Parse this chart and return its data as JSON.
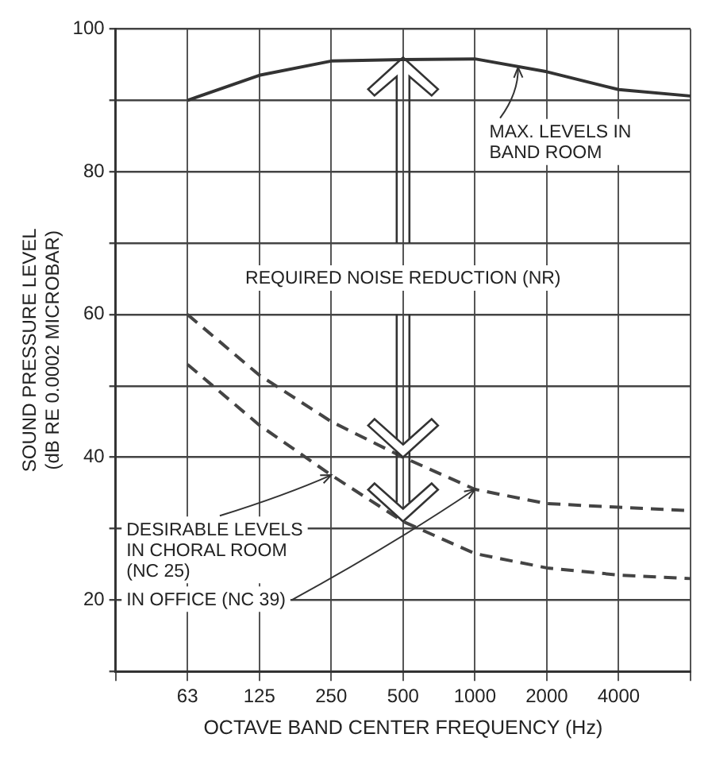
{
  "chart_data": {
    "type": "line",
    "xlabel": "OCTAVE BAND CENTER FREQUENCY (Hz)",
    "ylabel": "SOUND PRESSURE LEVEL (dB RE 0.0002 MICROBAR)",
    "categories": [
      null,
      "63",
      "125",
      "250",
      "500",
      "1000",
      "2000",
      "4000",
      null
    ],
    "series": [
      {
        "color": "#333333",
        "line_style": "solid",
        "values": [
          null,
          90,
          93.5,
          95.5,
          95.7,
          95.8,
          94,
          91.5,
          90.6
        ]
      },
      {
        "color": "#444444",
        "line_style": "dashed",
        "values": [
          null,
          60,
          51.5,
          45,
          40,
          35.5,
          33.5,
          33,
          32.5
        ]
      },
      {
        "color": "#444444",
        "line_style": "dashed",
        "values": [
          null,
          53,
          44.5,
          37.5,
          31,
          26.5,
          24.5,
          23.5,
          23
        ]
      }
    ],
    "ylim": [
      10,
      100
    ],
    "yticks": [
      {
        "value": 10,
        "label": null
      },
      20,
      {
        "value": 30,
        "label": null
      },
      40,
      {
        "value": 50,
        "label": null
      },
      60,
      {
        "value": 70,
        "label": null
      },
      80,
      {
        "value": 90,
        "label": null
      },
      100
    ],
    "grid": true,
    "marker": "none",
    "annotations": [
      "MAX. LEVELS IN BAND ROOM",
      "REQUIRED NOISE REDUCTION (NR)",
      {
        "text": "DESIRABLE LEVELS IN CHORAL ROOM (NC 25)",
        "x": "250",
        "y": 37.5
      },
      {
        "text": "IN OFFICE (NC 39)",
        "x": "1000",
        "y": 35.5
      }
    ]
  }
}
